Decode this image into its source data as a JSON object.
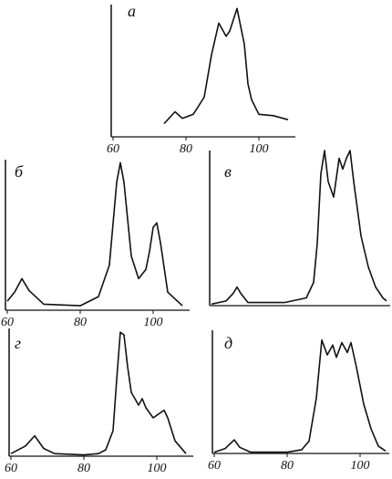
{
  "chart_data": [
    {
      "type": "line",
      "title": "а",
      "x": [
        74,
        77,
        79,
        82,
        85,
        87,
        89,
        91,
        92,
        94,
        96,
        97,
        98,
        100,
        104,
        108
      ],
      "values": [
        10,
        19,
        14,
        17,
        30,
        62,
        86,
        76,
        80,
        97,
        70,
        40,
        28,
        17,
        16,
        13
      ],
      "xlim": [
        60,
        110
      ],
      "ylim": [
        0,
        100
      ],
      "xticks": [
        60,
        80,
        100
      ],
      "color": "#111111"
    },
    {
      "type": "line",
      "title": "б",
      "x": [
        60,
        62,
        64,
        66,
        70,
        80,
        85,
        88,
        90,
        91,
        92,
        94,
        96,
        98,
        99,
        100,
        101,
        102,
        104,
        108
      ],
      "values": [
        6,
        12,
        21,
        13,
        4,
        3,
        9,
        30,
        85,
        98,
        85,
        36,
        21,
        27,
        39,
        55,
        58,
        45,
        12,
        3
      ],
      "xlim": [
        60,
        110
      ],
      "ylim": [
        0,
        100
      ],
      "xticks": [
        60,
        80,
        100
      ],
      "color": "#111111"
    },
    {
      "type": "line",
      "title": "в",
      "x": [
        60,
        64,
        66,
        67,
        68,
        70,
        80,
        86,
        88,
        89,
        90,
        91,
        92,
        93.5,
        95,
        96,
        97,
        98,
        99,
        101,
        103,
        105,
        107,
        108
      ],
      "values": [
        1,
        3,
        8,
        12,
        8,
        2,
        2,
        5,
        15,
        40,
        85,
        100,
        80,
        70,
        95,
        88,
        95,
        100,
        80,
        45,
        25,
        12,
        5,
        3
      ],
      "xlim": [
        60,
        109
      ],
      "ylim": [
        0,
        100
      ],
      "xticks": [],
      "color": "#111111"
    },
    {
      "type": "line",
      "title": "г",
      "x": [
        60,
        64,
        66.5,
        69,
        72,
        80,
        84,
        86,
        88,
        89,
        90,
        91,
        92,
        93,
        95,
        96,
        97,
        99,
        100,
        102,
        103,
        105,
        108
      ],
      "values": [
        2,
        8,
        16,
        6,
        2,
        1,
        2,
        5,
        20,
        60,
        97,
        95,
        70,
        50,
        40,
        45,
        38,
        30,
        32,
        36,
        30,
        12,
        2
      ],
      "xlim": [
        60,
        110
      ],
      "ylim": [
        0,
        100
      ],
      "xticks": [
        60,
        80,
        100
      ],
      "color": "#111111"
    },
    {
      "type": "line",
      "title": "д",
      "x": [
        60,
        63,
        65.5,
        67,
        70,
        80,
        84,
        86,
        88,
        89.5,
        91,
        92.5,
        93.5,
        95,
        96.5,
        97.5,
        99,
        101,
        103,
        105,
        107
      ],
      "values": [
        1,
        4,
        11,
        5,
        1,
        1,
        3,
        10,
        45,
        92,
        80,
        88,
        78,
        90,
        82,
        90,
        70,
        40,
        20,
        6,
        2
      ],
      "xlim": [
        60,
        108
      ],
      "ylim": [
        0,
        100
      ],
      "xticks": [
        60,
        80,
        100
      ],
      "color": "#111111"
    }
  ]
}
